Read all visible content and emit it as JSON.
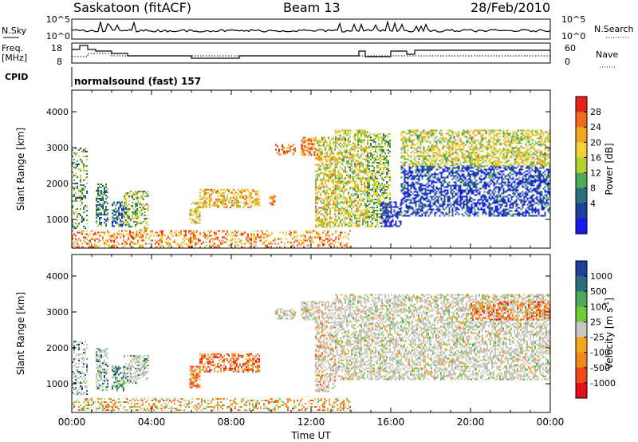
{
  "header": {
    "station": "Saskatoon (fitACF)",
    "beam": "Beam 13",
    "date": "28/Feb/2010"
  },
  "top_panels": {
    "nsky_label": "N.Sky",
    "nsky_ticks": [
      "10^5",
      "10^0"
    ],
    "nsearch_label": "N.Search",
    "nsearch_ticks": [
      "10^5",
      "10^0"
    ],
    "freq_label_1": "Freq.",
    "freq_label_2": "[MHz]",
    "freq_ticks": [
      "18",
      "8"
    ],
    "nave_label": "Nave",
    "nave_ticks": [
      "60",
      "0"
    ],
    "cpid_label": "CPID",
    "cpid_text": "normalsound (fast) 157"
  },
  "chart_data": [
    {
      "type": "heatmap",
      "name": "power",
      "ylabel": "Slant Range [km]",
      "yticks": [
        1000,
        2000,
        3000,
        4000
      ],
      "ylim": [
        200,
        4600
      ],
      "xlim": [
        0,
        24
      ],
      "xticks": [
        0,
        4,
        8,
        12,
        16,
        20,
        24
      ],
      "xticklabels": [
        "00:00",
        "04:00",
        "08:00",
        "12:00",
        "16:00",
        "20:00",
        "00:00"
      ],
      "colorbar": {
        "label": "Power [dB]",
        "ticks": [
          "28",
          "24",
          "20",
          "16",
          "12",
          "8",
          "4"
        ],
        "colors": [
          "#e4231b",
          "#f06a1c",
          "#f5a623",
          "#f3d23a",
          "#b2d234",
          "#4fa95a",
          "#2b6f7e",
          "#1f3f9e",
          "#1a1af0"
        ]
      },
      "regions": [
        {
          "t": [
            0.0,
            0.8
          ],
          "r": [
            700,
            3000
          ],
          "level": 0.6
        },
        {
          "t": [
            1.2,
            1.8
          ],
          "r": [
            800,
            2000
          ],
          "level": 0.7
        },
        {
          "t": [
            2.0,
            2.6
          ],
          "r": [
            800,
            1500
          ],
          "level": 0.75
        },
        {
          "t": [
            2.6,
            3.3
          ],
          "r": [
            800,
            1800
          ],
          "level": 0.55
        },
        {
          "t": [
            3.3,
            3.8
          ],
          "r": [
            700,
            1800
          ],
          "level": 0.5
        },
        {
          "t": [
            5.9,
            6.4
          ],
          "r": [
            900,
            1500
          ],
          "level": 0.4
        },
        {
          "t": [
            6.4,
            9.4
          ],
          "r": [
            1350,
            1850
          ],
          "level": 0.3
        },
        {
          "t": [
            9.9,
            10.2
          ],
          "r": [
            1400,
            1700
          ],
          "level": 0.2
        },
        {
          "t": [
            10.2,
            11.2
          ],
          "r": [
            2800,
            3100
          ],
          "level": 0.15
        },
        {
          "t": [
            11.5,
            12.2
          ],
          "r": [
            2800,
            3300
          ],
          "level": 0.2
        },
        {
          "t": [
            12.2,
            13.2
          ],
          "r": [
            800,
            3300
          ],
          "level": 0.4
        },
        {
          "t": [
            13.2,
            14.8
          ],
          "r": [
            800,
            3500
          ],
          "level": 0.45
        },
        {
          "t": [
            14.8,
            16.0
          ],
          "r": [
            800,
            3400
          ],
          "level": 0.55
        },
        {
          "t": [
            15.5,
            16.5
          ],
          "r": [
            800,
            1500
          ],
          "level": 0.95
        },
        {
          "t": [
            16.5,
            24.0
          ],
          "r": [
            1100,
            2500
          ],
          "level": 0.85
        },
        {
          "t": [
            16.5,
            24.0
          ],
          "r": [
            2500,
            3500
          ],
          "level": 0.45
        },
        {
          "t": [
            0.0,
            14.0
          ],
          "r": [
            250,
            700
          ],
          "level": 0.25
        }
      ]
    },
    {
      "type": "heatmap",
      "name": "velocity",
      "ylabel": "Slant Range [km]",
      "yticks": [
        1000,
        2000,
        3000,
        4000
      ],
      "ylim": [
        200,
        4600
      ],
      "xlim": [
        0,
        24
      ],
      "xticks": [
        0,
        4,
        8,
        12,
        16,
        20,
        24
      ],
      "xticklabels": [
        "00:00",
        "04:00",
        "08:00",
        "12:00",
        "16:00",
        "20:00",
        "00:00"
      ],
      "xlabel": "Time UT",
      "colorbar": {
        "label": "Velocity [m s",
        "label_sup": "-1",
        "label_end": "]",
        "ticks": [
          "1000",
          "500",
          "100",
          "25",
          "-25",
          "-100",
          "-500",
          "-1000"
        ],
        "colors": [
          "#1f3f9e",
          "#2b6f7e",
          "#4fa95a",
          "#6ccc3a",
          "#c8c8c0",
          "#f5a623",
          "#f08a1c",
          "#f04a1c",
          "#e4101b"
        ]
      },
      "regions": [
        {
          "t": [
            0.0,
            0.8
          ],
          "r": [
            700,
            2200
          ],
          "level": 0.15,
          "ground": true
        },
        {
          "t": [
            1.2,
            1.8
          ],
          "r": [
            800,
            2000
          ],
          "level": 0.2,
          "ground": true
        },
        {
          "t": [
            2.0,
            2.6
          ],
          "r": [
            800,
            1500
          ],
          "level": 0.25
        },
        {
          "t": [
            2.6,
            3.3
          ],
          "r": [
            1000,
            1800
          ],
          "level": 0.35,
          "ground": true
        },
        {
          "t": [
            3.3,
            3.8
          ],
          "r": [
            1100,
            1800
          ],
          "level": 0.2,
          "ground": true
        },
        {
          "t": [
            5.9,
            6.4
          ],
          "r": [
            900,
            1500
          ],
          "level": 0.7
        },
        {
          "t": [
            6.4,
            9.4
          ],
          "r": [
            1350,
            1850
          ],
          "level": 0.75
        },
        {
          "t": [
            10.2,
            11.2
          ],
          "r": [
            2800,
            3100
          ],
          "level": 0.5,
          "ground": true
        },
        {
          "t": [
            11.5,
            12.2
          ],
          "r": [
            2800,
            3300
          ],
          "level": 0.5,
          "ground": true
        },
        {
          "t": [
            12.2,
            13.2
          ],
          "r": [
            800,
            3300
          ],
          "level": 0.65,
          "ground": true
        },
        {
          "t": [
            13.2,
            24.0
          ],
          "r": [
            1100,
            3500
          ],
          "level": 0.5,
          "ground": true
        },
        {
          "t": [
            20.0,
            24.0
          ],
          "r": [
            2800,
            3300
          ],
          "level": 0.7
        },
        {
          "t": [
            0.0,
            14.0
          ],
          "r": [
            250,
            600
          ],
          "level": 0.6
        }
      ]
    }
  ]
}
